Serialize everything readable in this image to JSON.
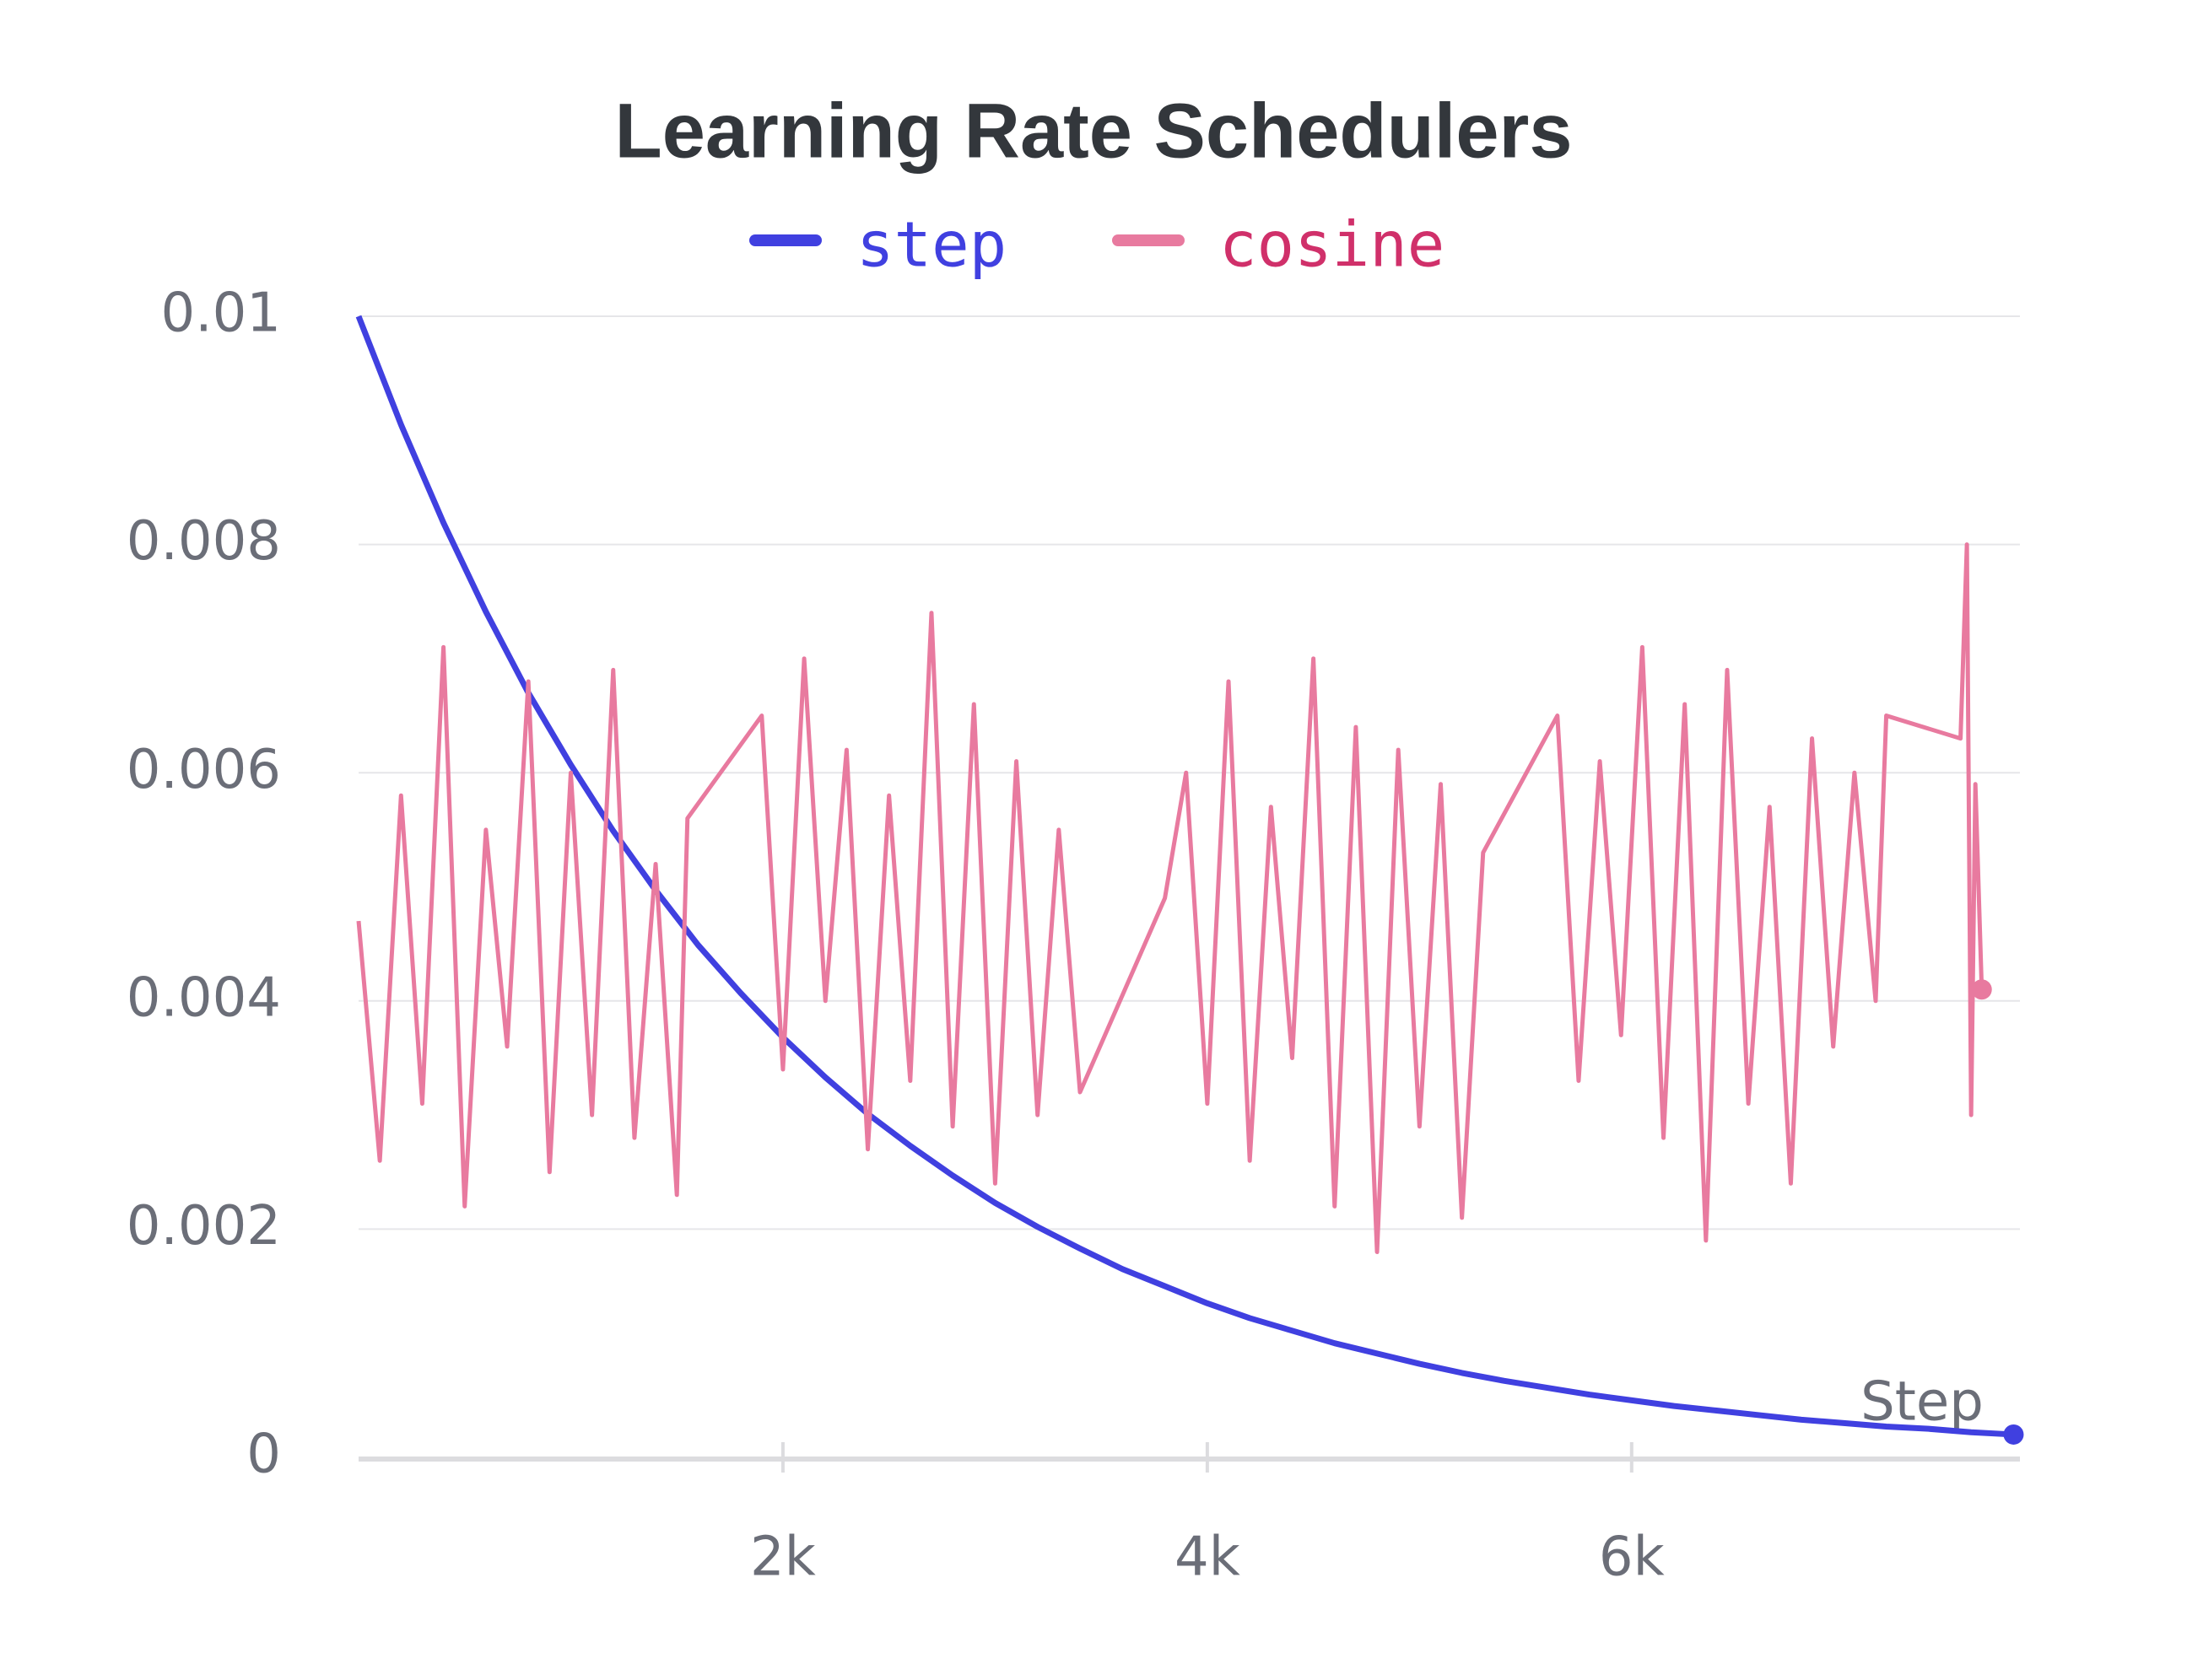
{
  "chart_data": {
    "type": "line",
    "title": "Learning Rate Schedulers",
    "x_label": "Step",
    "xlim": [
      0,
      7830
    ],
    "ylim": [
      0,
      0.01
    ],
    "xticks": [
      {
        "value": 2000,
        "label": "2k"
      },
      {
        "value": 4000,
        "label": "4k"
      },
      {
        "value": 6000,
        "label": "6k"
      }
    ],
    "yticks": [
      0,
      0.002,
      0.004,
      0.006,
      0.008,
      0.01
    ],
    "grid": true,
    "legend": "top",
    "series": [
      {
        "name": "step",
        "color": "#4040e0",
        "x": [
          0,
          200,
          400,
          600,
          800,
          1000,
          1200,
          1400,
          1600,
          1800,
          2000,
          2200,
          2400,
          2600,
          2800,
          3000,
          3200,
          3400,
          3600,
          3800,
          4000,
          4200,
          4400,
          4600,
          4800,
          5000,
          5200,
          5400,
          5600,
          5800,
          6000,
          6200,
          6400,
          6600,
          6800,
          7000,
          7200,
          7400,
          7600,
          7800
        ],
        "values": [
          0.01,
          0.00905,
          0.00819,
          0.00741,
          0.0067,
          0.00607,
          0.00549,
          0.00497,
          0.00449,
          0.00407,
          0.00368,
          0.00333,
          0.00301,
          0.00273,
          0.00247,
          0.00223,
          0.00202,
          0.00183,
          0.00165,
          0.0015,
          0.00135,
          0.00122,
          0.00111,
          0.001,
          0.00091,
          0.00082,
          0.00074,
          0.00067,
          0.00061,
          0.00055,
          0.0005,
          0.00045,
          0.00041,
          0.00037,
          0.00033,
          0.0003,
          0.00027,
          0.00025,
          0.00022,
          0.0002
        ]
      },
      {
        "name": "cosine",
        "color": "#e87a9f",
        "label_color": "#d0306a",
        "x": [
          0,
          100,
          200,
          300,
          400,
          500,
          600,
          700,
          800,
          900,
          1000,
          1100,
          1200,
          1300,
          1400,
          1500,
          1550,
          1900,
          2000,
          2100,
          2200,
          2300,
          2400,
          2500,
          2600,
          2700,
          2800,
          2900,
          3000,
          3100,
          3200,
          3300,
          3400,
          3800,
          3900,
          4000,
          4100,
          4200,
          4300,
          4400,
          4500,
          4600,
          4700,
          4800,
          4900,
          5000,
          5100,
          5200,
          5300,
          5650,
          5750,
          5850,
          5950,
          6050,
          6150,
          6250,
          6350,
          6450,
          6550,
          6650,
          6750,
          6850,
          6950,
          7050,
          7150,
          7200,
          7550,
          7580,
          7600,
          7620,
          7650
        ],
        "values": [
          0.0047,
          0.0026,
          0.0058,
          0.0031,
          0.0071,
          0.0022,
          0.0055,
          0.0036,
          0.0068,
          0.0025,
          0.006,
          0.003,
          0.0069,
          0.0028,
          0.0052,
          0.0023,
          0.0056,
          0.0065,
          0.0034,
          0.007,
          0.004,
          0.0062,
          0.0027,
          0.0058,
          0.0033,
          0.0074,
          0.0029,
          0.0066,
          0.0024,
          0.0061,
          0.003,
          0.0055,
          0.0032,
          0.0049,
          0.006,
          0.0031,
          0.0068,
          0.0026,
          0.0057,
          0.0035,
          0.007,
          0.0022,
          0.0064,
          0.0018,
          0.0062,
          0.0029,
          0.0059,
          0.0021,
          0.0053,
          0.0065,
          0.0033,
          0.0061,
          0.0037,
          0.0071,
          0.0028,
          0.0066,
          0.0019,
          0.0069,
          0.0031,
          0.0057,
          0.0024,
          0.0063,
          0.0036,
          0.006,
          0.004,
          0.0065,
          0.0063,
          0.008,
          0.003,
          0.0059,
          0.0041
        ]
      }
    ]
  }
}
